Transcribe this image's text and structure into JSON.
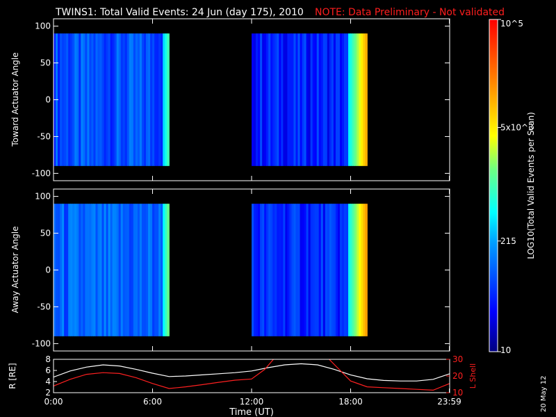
{
  "header": {
    "title": "TWINS1: Total Valid Events: 24 Jun (day 175), 2010",
    "note": "NOTE: Data Preliminary - Not validated"
  },
  "footer": {
    "xaxis_label": "Time (UT)",
    "date_stamp": "20 May 12"
  },
  "colors": {
    "background": "#000000",
    "axes": "#ffffff",
    "note": "#ff1e1e",
    "orbit_r": "#ffffff",
    "orbit_lshell": "#ff2020"
  },
  "colorbar": {
    "label": "LOG10(Total Valid Events per Scan)",
    "scale": "log",
    "range": [
      10,
      100000
    ],
    "tick_labels": [
      "10",
      "215",
      "5x10^3",
      "10^5"
    ],
    "tick_values": [
      10,
      215,
      5000,
      100000
    ]
  },
  "chart_data": [
    {
      "type": "heatmap",
      "ylabel": "Toward Actuator Angle",
      "xlim_hours": [
        0,
        24
      ],
      "ylim": [
        -110,
        110
      ],
      "yticks": [
        "100",
        "50",
        "0",
        "-50",
        "-100"
      ],
      "ytick_values": [
        100,
        50,
        0,
        -50,
        -100
      ],
      "angle_range": [
        -90,
        90
      ],
      "data_blocks": [
        {
          "start": "00:00",
          "end": "07:00",
          "bright_edge_from": "06:30",
          "edge_level": 0.55,
          "base_level": 0.22
        },
        {
          "start": "12:00",
          "end": "19:00",
          "bright_edge_from": "17:45",
          "edge_level": 0.8,
          "base_level": 0.16
        },
        {
          "start": "23:59",
          "end": "24:00",
          "bright_edge_from": "23:59",
          "edge_level": 0.5,
          "base_level": 0.25
        }
      ]
    },
    {
      "type": "heatmap",
      "ylabel": "Away Actuator Angle",
      "xlim_hours": [
        0,
        24
      ],
      "ylim": [
        -110,
        110
      ],
      "yticks": [
        "100",
        "50",
        "0",
        "-50",
        "-100"
      ],
      "ytick_values": [
        100,
        50,
        0,
        -50,
        -100
      ],
      "angle_range": [
        -90,
        90
      ],
      "data_blocks": [
        {
          "start": "00:00",
          "end": "07:00",
          "bright_edge_from": "06:30",
          "edge_level": 0.6,
          "base_level": 0.24
        },
        {
          "start": "12:00",
          "end": "19:00",
          "bright_edge_from": "17:45",
          "edge_level": 0.82,
          "base_level": 0.17
        },
        {
          "start": "23:59",
          "end": "24:00",
          "bright_edge_from": "23:59",
          "edge_level": 0.5,
          "base_level": 0.25
        }
      ]
    },
    {
      "type": "line",
      "ylabel_left": "R [RE]",
      "ylabel_right": "L Shell",
      "x_ticks": [
        "0:00",
        "6:00",
        "12:00",
        "18:00",
        "23:59"
      ],
      "x_tick_hours": [
        0,
        6,
        12,
        18,
        23.98
      ],
      "ylim_left": [
        2,
        8
      ],
      "yticks_left": [
        "8",
        "6",
        "4",
        "2"
      ],
      "ylim_right": [
        10,
        30
      ],
      "yticks_right": [
        "30",
        "20",
        "10"
      ],
      "series": [
        {
          "name": "R",
          "axis": "left",
          "x": [
            0,
            1,
            2,
            3,
            4,
            5,
            6,
            7,
            8,
            9,
            10,
            11,
            12,
            13,
            14,
            15,
            16,
            17,
            18,
            19,
            20,
            21,
            22,
            23,
            24
          ],
          "y": [
            4.8,
            5.9,
            6.6,
            7.0,
            6.8,
            6.2,
            5.5,
            4.9,
            5.0,
            5.2,
            5.4,
            5.6,
            5.9,
            6.5,
            7.0,
            7.2,
            7.0,
            6.2,
            5.2,
            4.5,
            4.2,
            4.1,
            4.1,
            4.4,
            5.4
          ]
        },
        {
          "name": "L Shell",
          "axis": "right",
          "x": [
            0,
            1,
            2,
            3,
            4,
            5,
            6,
            7,
            8,
            9,
            10,
            11,
            12,
            12.8,
            13.5,
            16.5,
            17.2,
            18,
            19,
            20,
            21,
            22,
            23,
            24
          ],
          "y": [
            14,
            18,
            21,
            22,
            21.5,
            19,
            15.5,
            12.5,
            13.5,
            14.8,
            16.2,
            17.5,
            18.2,
            24,
            32,
            32,
            25,
            17,
            13.5,
            13,
            12.5,
            12,
            11.5,
            15.5
          ]
        }
      ]
    }
  ]
}
